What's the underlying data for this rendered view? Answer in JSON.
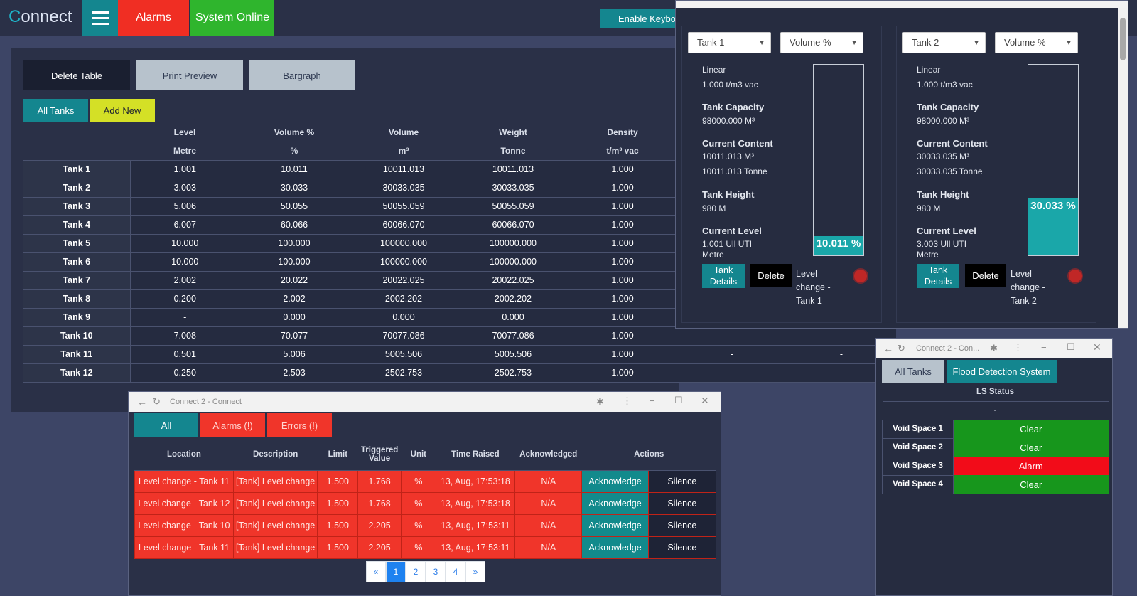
{
  "topbar": {
    "logo_c": "C",
    "logo_rest": "onnect",
    "alarms": "Alarms",
    "status": "System Online",
    "keyboard": "Enable Keybo"
  },
  "actions": {
    "delete_table": "Delete Table",
    "print_preview": "Print Preview",
    "bargraph": "Bargraph",
    "all_tanks": "All Tanks",
    "add_new": "Add New"
  },
  "table": {
    "headers": [
      "",
      "Level",
      "Volume %",
      "Volume",
      "Weight",
      "Density",
      "",
      ""
    ],
    "units": [
      "",
      "Metre",
      "%",
      "m³",
      "Tonne",
      "t/m³ vac",
      "",
      ""
    ],
    "rows": [
      [
        "Tank 1",
        "1.001",
        "10.011",
        "10011.013",
        "10011.013",
        "1.000",
        "",
        ""
      ],
      [
        "Tank 2",
        "3.003",
        "30.033",
        "30033.035",
        "30033.035",
        "1.000",
        "",
        ""
      ],
      [
        "Tank 3",
        "5.006",
        "50.055",
        "50055.059",
        "50055.059",
        "1.000",
        "",
        ""
      ],
      [
        "Tank 4",
        "6.007",
        "60.066",
        "60066.070",
        "60066.070",
        "1.000",
        "",
        ""
      ],
      [
        "Tank 5",
        "10.000",
        "100.000",
        "100000.000",
        "100000.000",
        "1.000",
        "",
        ""
      ],
      [
        "Tank 6",
        "10.000",
        "100.000",
        "100000.000",
        "100000.000",
        "1.000",
        "",
        ""
      ],
      [
        "Tank 7",
        "2.002",
        "20.022",
        "20022.025",
        "20022.025",
        "1.000",
        "",
        ""
      ],
      [
        "Tank 8",
        "0.200",
        "2.002",
        "2002.202",
        "2002.202",
        "1.000",
        "",
        ""
      ],
      [
        "Tank 9",
        "-",
        "0.000",
        "0.000",
        "0.000",
        "1.000",
        "",
        ""
      ],
      [
        "Tank 10",
        "7.008",
        "70.077",
        "70077.086",
        "70077.086",
        "1.000",
        "-",
        "-"
      ],
      [
        "Tank 11",
        "0.501",
        "5.006",
        "5005.506",
        "5005.506",
        "1.000",
        "-",
        "-"
      ],
      [
        "Tank 12",
        "0.250",
        "2.503",
        "2502.753",
        "2502.753",
        "1.000",
        "-",
        "-"
      ]
    ]
  },
  "tanks": [
    {
      "name": "Tank 1",
      "mode": "Volume %",
      "type": "Linear",
      "density": "1.000 t/m3 vac",
      "cap_label": "Tank Capacity",
      "capacity": "98000.000 M³",
      "content_label": "Current Content",
      "content_m3": "10011.013 M³",
      "content_t": "10011.013 Tonne",
      "height_label": "Tank Height",
      "height": "980 M",
      "level_label": "Current Level",
      "level": "1.001 Ull UTI",
      "level_unit": "Metre",
      "percent_label": "10.011 %",
      "percent": 10.011,
      "details": "Tank Details",
      "delete": "Delete",
      "alarm": "Level change - Tank 1"
    },
    {
      "name": "Tank 2",
      "mode": "Volume %",
      "type": "Linear",
      "density": "1.000 t/m3 vac",
      "cap_label": "Tank Capacity",
      "capacity": "98000.000 M³",
      "content_label": "Current Content",
      "content_m3": "30033.035 M³",
      "content_t": "30033.035 Tonne",
      "height_label": "Tank Height",
      "height": "980 M",
      "level_label": "Current Level",
      "level": "3.003 Ull UTI",
      "level_unit": "Metre",
      "percent_label": "30.033 %",
      "percent": 30.033,
      "details": "Tank Details",
      "delete": "Delete",
      "alarm": "Level change - Tank 2"
    }
  ],
  "alarms_window": {
    "title": "Connect 2 - Connect",
    "tabs": {
      "all": "All",
      "alarms": "Alarms (!)",
      "errors": "Errors (!)"
    },
    "headers": [
      "Location",
      "Description",
      "Limit",
      "Triggered Value",
      "Unit",
      "Time Raised",
      "Acknowledged",
      "Actions"
    ],
    "rows": [
      [
        "Level change - Tank 11",
        "[Tank] Level change",
        "1.500",
        "1.768",
        "%",
        "13, Aug, 17:53:18",
        "N/A"
      ],
      [
        "Level change - Tank 12",
        "[Tank] Level change",
        "1.500",
        "1.768",
        "%",
        "13, Aug, 17:53:18",
        "N/A"
      ],
      [
        "Level change - Tank 10",
        "[Tank] Level change",
        "1.500",
        "2.205",
        "%",
        "13, Aug, 17:53:11",
        "N/A"
      ],
      [
        "Level change - Tank 11",
        "[Tank] Level change",
        "1.500",
        "2.205",
        "%",
        "13, Aug, 17:53:11",
        "N/A"
      ]
    ],
    "ack": "Acknowledge",
    "silence": "Silence",
    "pagination": [
      "«",
      "1",
      "2",
      "3",
      "4",
      "»"
    ]
  },
  "flood_window": {
    "title": "Connect 2 - Con...",
    "tab_all": "All Tanks",
    "tab_flood": "Flood Detection System",
    "header": "LS Status",
    "dash": "-",
    "rows": [
      [
        "Void Space 1",
        "Clear"
      ],
      [
        "Void Space 2",
        "Clear"
      ],
      [
        "Void Space 3",
        "Alarm"
      ],
      [
        "Void Space 4",
        "Clear"
      ]
    ]
  },
  "colors": {
    "accent": "#14868f",
    "alarm": "#f02e23",
    "ok": "#2fb52d",
    "panel": "#2a3047"
  }
}
